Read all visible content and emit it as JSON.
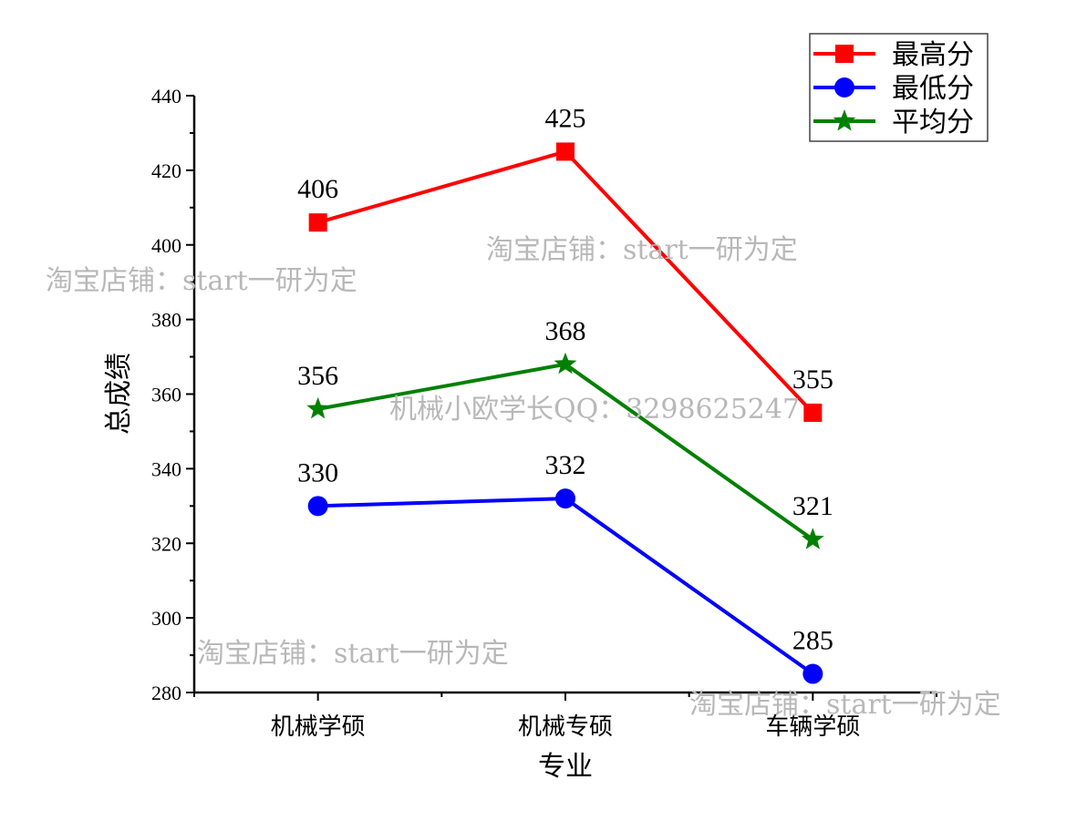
{
  "chart_data": {
    "type": "line",
    "title": "",
    "xlabel": "专业",
    "ylabel": "总成绩",
    "categories": [
      "机械学硕",
      "机械专硕",
      "车辆学硕"
    ],
    "ylim": [
      280,
      440
    ],
    "yticks": [
      280,
      300,
      320,
      340,
      360,
      380,
      400,
      420,
      440
    ],
    "grid": false,
    "legend_position": "top-right",
    "series": [
      {
        "name": "最高分",
        "color": "#ff0000",
        "marker": "square",
        "values": [
          406,
          425,
          355
        ]
      },
      {
        "name": "最低分",
        "color": "#0000ff",
        "marker": "circle",
        "values": [
          330,
          332,
          285
        ]
      },
      {
        "name": "平均分",
        "color": "#008000",
        "marker": "star",
        "values": [
          356,
          368,
          321
        ]
      }
    ]
  },
  "watermarks": [
    "淘宝店铺：start一研为定",
    "淘宝店铺：start一研为定",
    "机械小欧学长QQ：3298625247",
    "淘宝店铺：start一研为定",
    "淘宝店铺：start一研为定"
  ]
}
